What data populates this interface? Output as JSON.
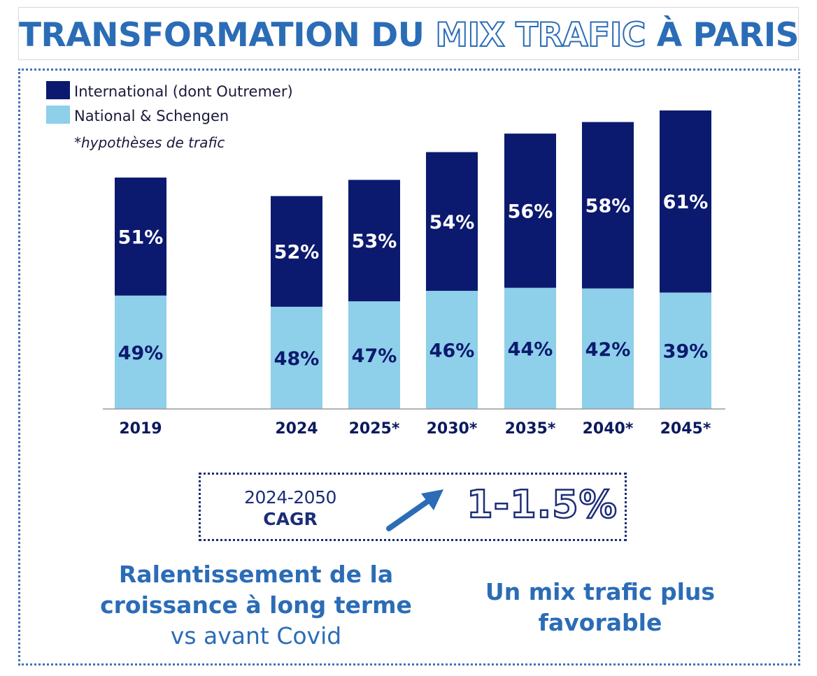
{
  "title": {
    "part1": "TRANSFORMATION DU ",
    "part2": "MIX TRAFIC",
    "part3": " À PARIS"
  },
  "colors": {
    "international": "#0b1a6e",
    "national": "#8ecfe9",
    "label_on_dark": "#ffffff",
    "label_on_light": "#0b1a6e",
    "accent": "#2b6cb6"
  },
  "legend": {
    "international": "International (dont Outremer)",
    "national": "National & Schengen",
    "note": "*hypothèses de trafic"
  },
  "chart_data": {
    "type": "bar",
    "stacked": true,
    "categories": [
      "2019",
      "2024",
      "2025*",
      "2030*",
      "2035*",
      "2040*",
      "2045*"
    ],
    "totals_relative_to_2019": [
      1.0,
      0.92,
      0.99,
      1.11,
      1.19,
      1.24,
      1.29
    ],
    "series": [
      {
        "name": "National & Schengen",
        "values": [
          49,
          48,
          47,
          46,
          44,
          42,
          39
        ],
        "labels": [
          "49%",
          "48%",
          "47%",
          "46%",
          "44%",
          "42%",
          "39%"
        ]
      },
      {
        "name": "International (dont Outremer)",
        "values": [
          51,
          52,
          53,
          54,
          56,
          58,
          61
        ],
        "labels": [
          "51%",
          "52%",
          "53%",
          "54%",
          "56%",
          "58%",
          "61%"
        ]
      }
    ],
    "unit": "%",
    "gap_after_first_category": true,
    "gridlines": false,
    "legend_position": "top-left"
  },
  "cagr": {
    "period": "2024-2050",
    "label": "CAGR",
    "value": "1-1.5%"
  },
  "messages": {
    "left_line1": "Ralentissement de la",
    "left_line2": "croissance à long terme",
    "left_line3": "vs avant Covid",
    "right_line1": "Un mix trafic plus",
    "right_line2": "favorable"
  }
}
